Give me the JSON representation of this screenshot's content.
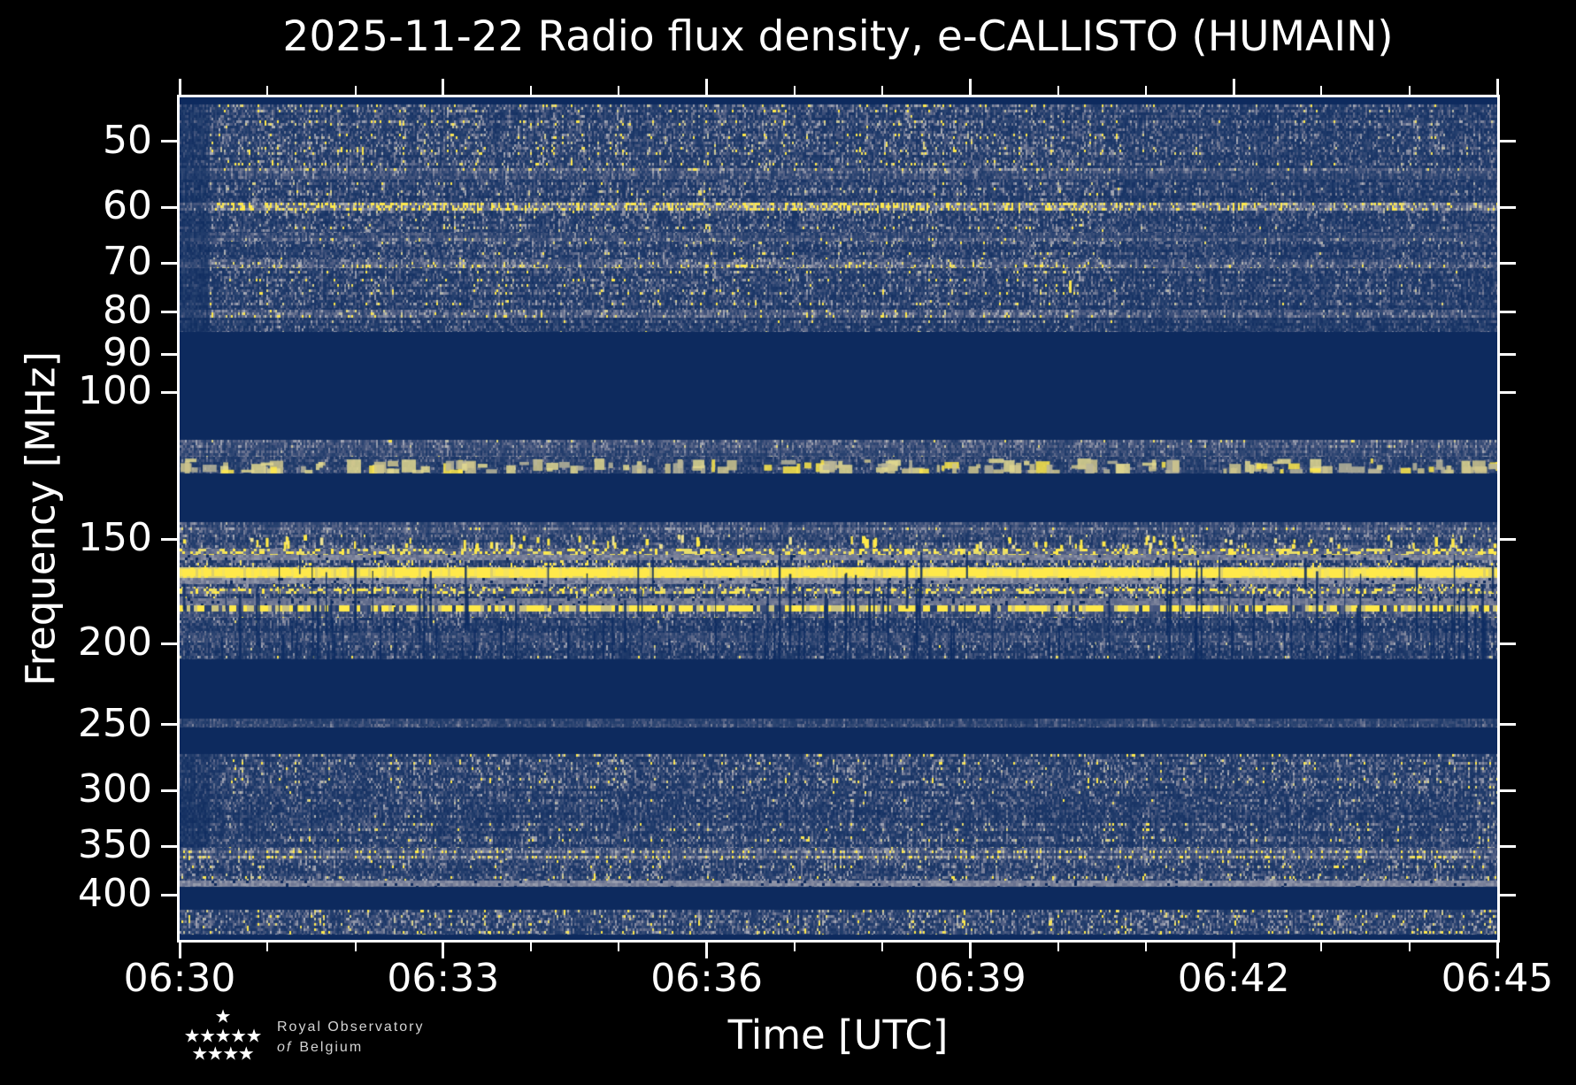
{
  "chart_data": {
    "type": "heatmap",
    "subtype": "radio-spectrogram",
    "title": "2025-11-22 Radio flux density, e-CALLISTO (HUMAIN)",
    "x_label": "Time [UTC]",
    "y_label": "Frequency [MHz]",
    "x_tick_labels": [
      "06:30",
      "06:33",
      "06:36",
      "06:39",
      "06:42",
      "06:45"
    ],
    "x_total_minutes": 15,
    "x_minor_minutes": [
      1,
      2,
      4,
      5,
      7,
      8,
      10,
      11,
      13,
      14
    ],
    "y_tick_values": [
      50,
      60,
      70,
      80,
      90,
      100,
      150,
      200,
      250,
      300,
      350,
      400
    ],
    "y_scale": "log",
    "y_range_mhz": [
      44.3,
      453
    ],
    "time_range": [
      "06:30",
      "06:45"
    ],
    "legend": "none",
    "grid": "off",
    "colors": {
      "background": "#000000",
      "quiet": "#0d2a5e",
      "yellow": "#ffe94a",
      "pale_yellow": "#e9dd6a",
      "cream": "#cfc68d",
      "gray_band": "#8a8fa2",
      "text": "#ffffff"
    },
    "palette_stops": [
      [
        0.0,
        "#0d2a5e"
      ],
      [
        0.3,
        "#27416f"
      ],
      [
        0.5,
        "#49587f"
      ],
      [
        0.7,
        "#7b829a"
      ],
      [
        0.85,
        "#a9acb8"
      ],
      [
        0.93,
        "#d6cf8f"
      ],
      [
        1.0,
        "#ffe94a"
      ]
    ],
    "bands": [
      {
        "f0": 44.3,
        "f1": 45.2,
        "style": "quiet"
      },
      {
        "f0": 45.2,
        "f1": 53.9,
        "style": "noise",
        "i": 0.52,
        "dl": 1,
        "dr": 1
      },
      {
        "f0": 53.9,
        "f1": 55.6,
        "style": "speckle",
        "i": 0.58,
        "dl": 1,
        "dr": 1
      },
      {
        "f0": 55.6,
        "f1": 59.2,
        "style": "noise",
        "i": 0.46,
        "dl": 1,
        "dr": 1
      },
      {
        "f0": 59.2,
        "f1": 60.6,
        "style": "speckle",
        "i": 0.76,
        "dl": 1,
        "dr": 1
      },
      {
        "f0": 60.6,
        "f1": 64.4,
        "style": "noise",
        "i": 0.5,
        "dl": 1,
        "dr": 1
      },
      {
        "f0": 64.4,
        "f1": 65.9,
        "style": "speckle",
        "i": 0.55,
        "dl": 1,
        "dr": 1
      },
      {
        "f0": 65.9,
        "f1": 69.3,
        "style": "noise",
        "i": 0.47,
        "dl": 1,
        "dr": 1
      },
      {
        "f0": 69.3,
        "f1": 70.9,
        "style": "speckle",
        "i": 0.64,
        "dl": 1,
        "dr": 1
      },
      {
        "f0": 70.9,
        "f1": 79.6,
        "style": "noise",
        "i": 0.5,
        "dl": 1,
        "dr": 1
      },
      {
        "f0": 79.6,
        "f1": 81.4,
        "style": "speckle",
        "i": 0.58,
        "dl": 1,
        "dr": 1
      },
      {
        "f0": 81.4,
        "f1": 84.6,
        "style": "noise",
        "i": 0.42,
        "dl": 1,
        "dr": 1
      },
      {
        "f0": 84.6,
        "f1": 114.0,
        "style": "quiet"
      },
      {
        "f0": 114.0,
        "f1": 119.5,
        "style": "speckle",
        "i": 0.5
      },
      {
        "f0": 119.5,
        "f1": 125.1,
        "style": "blobs",
        "i": 0.42
      },
      {
        "f0": 125.1,
        "f1": 143.1,
        "style": "quiet"
      },
      {
        "f0": 143.1,
        "f1": 148.0,
        "style": "speckle",
        "i": 0.52
      },
      {
        "f0": 148.0,
        "f1": 154.0,
        "style": "yellowdots",
        "i": 0.5
      },
      {
        "f0": 154.0,
        "f1": 156.5,
        "style": "yellowmix",
        "i": 0.6
      },
      {
        "f0": 156.5,
        "f1": 159.0,
        "style": "gray",
        "i": 0.62
      },
      {
        "f0": 159.0,
        "f1": 162.1,
        "style": "noise",
        "i": 0.52
      },
      {
        "f0": 162.1,
        "f1": 166.9,
        "style": "yellow",
        "i": 1.0
      },
      {
        "f0": 166.9,
        "f1": 169.8,
        "style": "gray",
        "i": 0.64
      },
      {
        "f0": 169.8,
        "f1": 171.8,
        "style": "noise",
        "i": 0.55
      },
      {
        "f0": 171.8,
        "f1": 174.2,
        "style": "yellowmix",
        "i": 0.52
      },
      {
        "f0": 174.2,
        "f1": 176.6,
        "style": "noise",
        "i": 0.5
      },
      {
        "f0": 176.6,
        "f1": 179.9,
        "style": "gray",
        "i": 0.58
      },
      {
        "f0": 179.9,
        "f1": 183.2,
        "style": "yellowdash",
        "i": 0.9
      },
      {
        "f0": 183.2,
        "f1": 186.0,
        "style": "speckle",
        "i": 0.62
      },
      {
        "f0": 186.0,
        "f1": 190.3,
        "style": "noise",
        "i": 0.5
      },
      {
        "f0": 190.3,
        "f1": 194.0,
        "style": "noise",
        "i": 0.46
      },
      {
        "f0": 194.0,
        "f1": 199.5,
        "style": "speckle",
        "i": 0.55
      },
      {
        "f0": 199.5,
        "f1": 208.9,
        "style": "noise",
        "i": 0.44
      },
      {
        "f0": 208.9,
        "f1": 245.9,
        "style": "quiet"
      },
      {
        "f0": 245.9,
        "f1": 252.1,
        "style": "speckle",
        "i": 0.46
      },
      {
        "f0": 252.1,
        "f1": 271.3,
        "style": "quiet"
      },
      {
        "f0": 271.3,
        "f1": 305.0,
        "style": "noise",
        "i": 0.5,
        "dl": 1
      },
      {
        "f0": 305.0,
        "f1": 351.5,
        "style": "noise",
        "i": 0.47,
        "dl": 1
      },
      {
        "f0": 351.5,
        "f1": 363.8,
        "style": "speckle",
        "i": 0.6
      },
      {
        "f0": 363.8,
        "f1": 384.7,
        "style": "noise",
        "i": 0.52
      },
      {
        "f0": 384.7,
        "f1": 391.3,
        "style": "gray",
        "i": 0.64
      },
      {
        "f0": 391.3,
        "f1": 417.0,
        "style": "quiet"
      },
      {
        "f0": 417.0,
        "f1": 446.4,
        "style": "noise",
        "i": 0.54
      },
      {
        "f0": 446.4,
        "f1": 453.0,
        "style": "quiet"
      }
    ],
    "dropouts": {
      "f0": 154.0,
      "f1": 208.9,
      "count": 140
    },
    "speck": {
      "x_frac": 0.675,
      "f_mhz": 74.5
    }
  },
  "logo": {
    "line1": "Royal Observatory",
    "line2_italic": "of",
    "line2_rest": "Belgium",
    "star_rows": [
      1,
      5,
      4
    ]
  }
}
